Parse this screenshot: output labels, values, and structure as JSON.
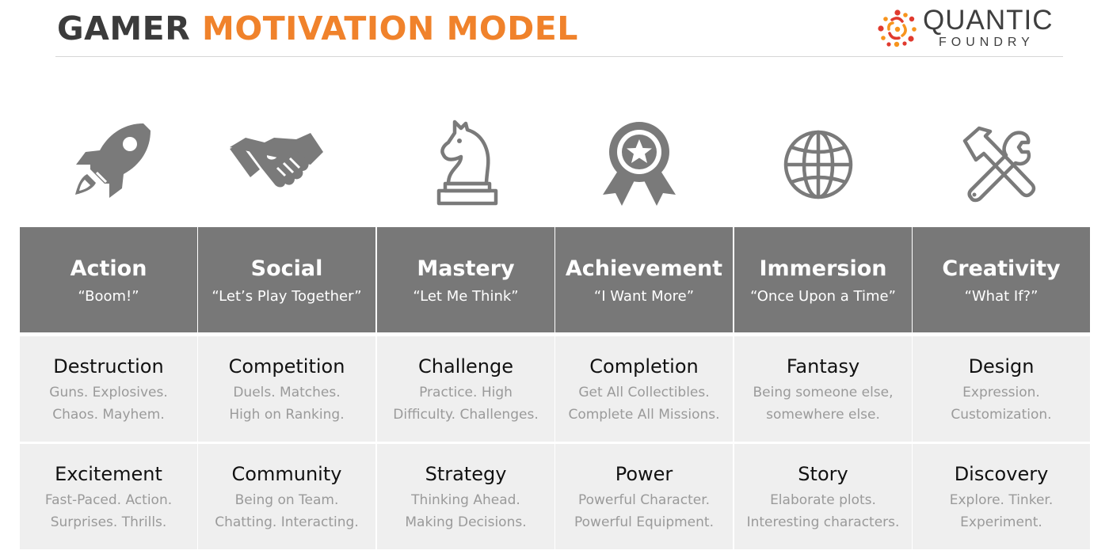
{
  "header": {
    "title_dark": "GAMER",
    "title_accent": "MOTIVATION MODEL",
    "logo_name": "QUANTIC",
    "logo_sub": "FOUNDRY"
  },
  "colors": {
    "accent": "#f0822b",
    "logo_red": "#e03a2e",
    "logo_orange": "#f7941d",
    "header_fill": "#787878",
    "cell_fill": "#efefef",
    "icon_gray": "#7a7a7a"
  },
  "columns": [
    {
      "icon": "rocket-icon",
      "title": "Action",
      "quote": "“Boom!”",
      "components": [
        {
          "title": "Destruction",
          "line1": "Guns. Explosives.",
          "line2": "Chaos. Mayhem."
        },
        {
          "title": "Excitement",
          "line1": "Fast-Paced. Action.",
          "line2": "Surprises. Thrills."
        }
      ]
    },
    {
      "icon": "handshake-icon",
      "title": "Social",
      "quote": "“Let’s Play Together”",
      "components": [
        {
          "title": "Competition",
          "line1": "Duels. Matches.",
          "line2": "High on Ranking."
        },
        {
          "title": "Community",
          "line1": "Being on Team.",
          "line2": "Chatting. Interacting."
        }
      ]
    },
    {
      "icon": "chess-knight-icon",
      "title": "Mastery",
      "quote": "“Let Me Think”",
      "components": [
        {
          "title": "Challenge",
          "line1": "Practice. High",
          "line2": "Difficulty. Challenges."
        },
        {
          "title": "Strategy",
          "line1": "Thinking Ahead.",
          "line2": "Making Decisions."
        }
      ]
    },
    {
      "icon": "award-ribbon-icon",
      "title": "Achievement",
      "quote": "“I Want More”",
      "components": [
        {
          "title": "Completion",
          "line1": "Get All Collectibles.",
          "line2": "Complete All Missions."
        },
        {
          "title": "Power",
          "line1": "Powerful Character.",
          "line2": "Powerful Equipment."
        }
      ]
    },
    {
      "icon": "globe-icon",
      "title": "Immersion",
      "quote": "“Once Upon a Time”",
      "components": [
        {
          "title": "Fantasy",
          "line1": "Being someone else,",
          "line2": "somewhere else."
        },
        {
          "title": "Story",
          "line1": "Elaborate plots.",
          "line2": "Interesting characters."
        }
      ]
    },
    {
      "icon": "tools-icon",
      "title": "Creativity",
      "quote": "“What If?”",
      "components": [
        {
          "title": "Design",
          "line1": "Expression.",
          "line2": "Customization."
        },
        {
          "title": "Discovery",
          "line1": "Explore. Tinker.",
          "line2": "Experiment."
        }
      ]
    }
  ]
}
